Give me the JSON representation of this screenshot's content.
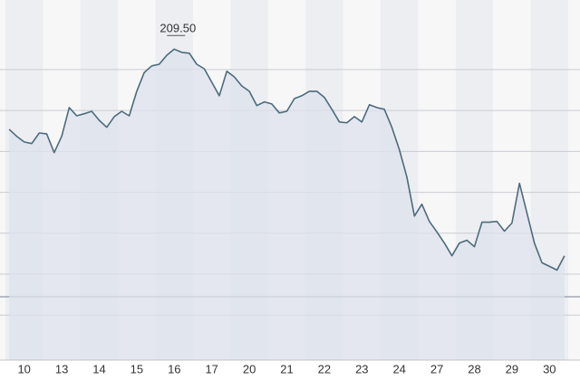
{
  "chart_data": {
    "type": "area",
    "categories": [
      null,
      null,
      "10",
      null,
      null,
      null,
      null,
      "13",
      null,
      null,
      null,
      null,
      "14",
      null,
      null,
      null,
      null,
      "15",
      null,
      null,
      null,
      null,
      "16",
      null,
      null,
      null,
      null,
      "17",
      null,
      null,
      null,
      null,
      "20",
      null,
      null,
      null,
      null,
      "21",
      null,
      null,
      null,
      null,
      "22",
      null,
      null,
      null,
      null,
      "23",
      null,
      null,
      null,
      null,
      "24",
      null,
      null,
      null,
      null,
      "27",
      null,
      null,
      null,
      null,
      "28",
      null,
      null,
      null,
      null,
      "29",
      null,
      null,
      null,
      null,
      "30",
      null,
      null
    ],
    "values": [
      207.54,
      207.37,
      207.23,
      207.19,
      207.45,
      207.43,
      206.97,
      207.37,
      208.07,
      207.87,
      207.92,
      207.98,
      207.76,
      207.59,
      207.85,
      207.98,
      207.87,
      208.47,
      208.93,
      209.09,
      209.13,
      209.35,
      209.5,
      209.42,
      209.4,
      209.13,
      209.02,
      208.69,
      208.36,
      208.96,
      208.82,
      208.6,
      208.47,
      208.12,
      208.21,
      208.16,
      207.94,
      207.98,
      208.29,
      208.36,
      208.47,
      208.47,
      208.32,
      208.03,
      207.72,
      207.7,
      207.85,
      207.72,
      208.14,
      208.07,
      208.03,
      207.59,
      207.04,
      206.37,
      205.42,
      205.71,
      205.29,
      205.03,
      204.76,
      204.45,
      204.76,
      204.83,
      204.67,
      205.27,
      205.27,
      205.29,
      205.05,
      205.25,
      206.22,
      205.49,
      204.76,
      204.28,
      204.19,
      204.1,
      204.45
    ],
    "value_labels": [
      null,
      null,
      null,
      null,
      null,
      null,
      null,
      null,
      null,
      null,
      null,
      null,
      null,
      null,
      null,
      null,
      null,
      null,
      null,
      null,
      null,
      null,
      "209.50",
      null,
      null,
      null,
      null,
      null,
      null,
      null,
      null,
      null,
      null,
      null,
      null,
      null,
      null,
      null,
      null,
      null,
      null,
      null,
      null,
      null,
      null,
      null,
      null,
      null,
      null,
      null,
      null,
      null,
      null,
      null,
      null,
      null,
      null,
      null,
      null,
      null,
      null,
      null,
      null,
      null,
      null,
      null,
      null,
      null,
      null,
      null,
      null,
      null,
      null,
      null,
      null
    ],
    "color": "#4d6b7c",
    "fill_color": "#dde2ec",
    "ylim": [
      201.9,
      210.7
    ],
    "yticks": [
      203,
      204,
      205,
      206,
      207,
      208,
      209
    ],
    "ytick_labels": false,
    "grid": true
  }
}
